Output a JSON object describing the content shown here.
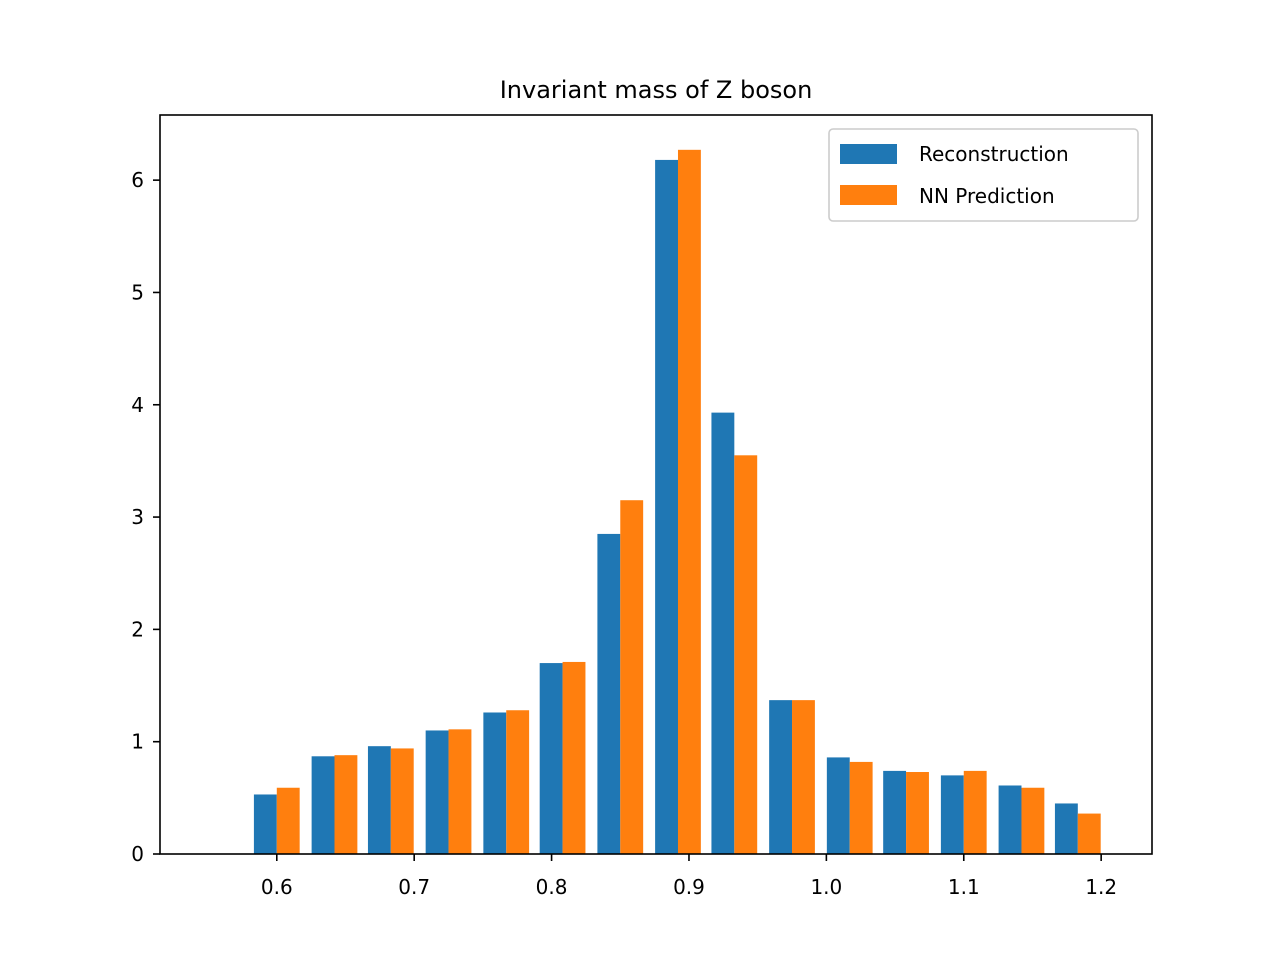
{
  "chart_data": {
    "type": "bar",
    "title": "Invariant mass of Z boson",
    "xlabel": "",
    "ylabel": "",
    "xlim": [
      0.515,
      1.237
    ],
    "ylim": [
      0,
      6.58
    ],
    "x_ticks": [
      "0.6",
      "0.7",
      "0.8",
      "0.9",
      "1.0",
      "1.1",
      "1.2"
    ],
    "y_ticks": [
      "0",
      "1",
      "2",
      "3",
      "4",
      "5",
      "6"
    ],
    "bin_centers": [
      0.6,
      0.642,
      0.683,
      0.725,
      0.767,
      0.808,
      0.85,
      0.892,
      0.933,
      0.975,
      1.017,
      1.058,
      1.1,
      1.142,
      1.183
    ],
    "bar_group_width": 0.0333,
    "series": [
      {
        "name": "Reconstruction",
        "color": "#1f77b4",
        "values": [
          0.53,
          0.87,
          0.96,
          1.1,
          1.26,
          1.7,
          2.85,
          6.18,
          3.93,
          1.37,
          0.86,
          0.74,
          0.7,
          0.61,
          0.45
        ]
      },
      {
        "name": "NN Prediction",
        "color": "#ff7f0e",
        "values": [
          0.59,
          0.88,
          0.94,
          1.11,
          1.28,
          1.71,
          3.15,
          6.27,
          3.55,
          1.37,
          0.82,
          0.73,
          0.74,
          0.59,
          0.36
        ]
      }
    ],
    "grid": false,
    "legend_position": "top-right"
  }
}
